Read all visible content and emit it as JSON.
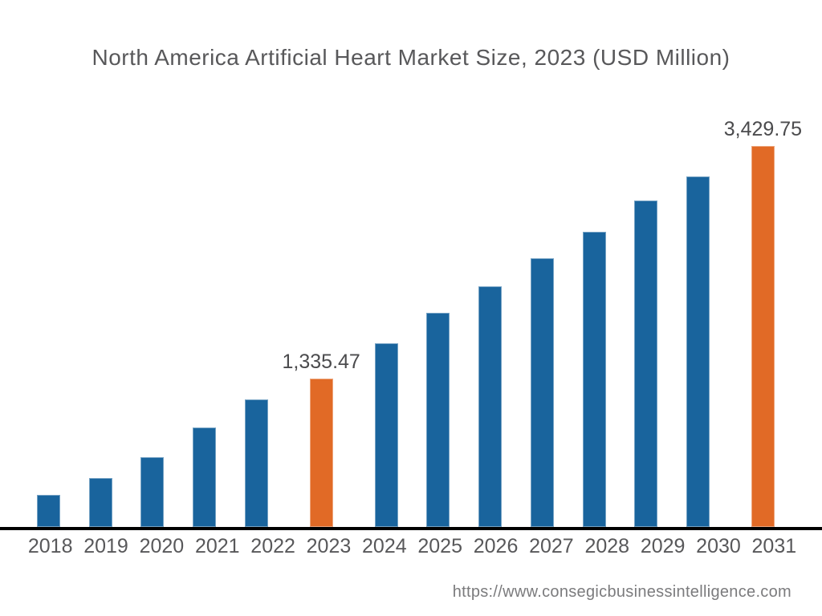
{
  "title": "North America Artificial Heart Market Size, 2023 (USD Million)",
  "source_url": "https://www.consegicbusinessintelligence.com",
  "chart_data": {
    "type": "bar",
    "title": "North America Artificial Heart Market Size, 2023 (USD Million)",
    "unit": "USD Million",
    "categories": [
      "2018",
      "2019",
      "2020",
      "2021",
      "2022",
      "2023",
      "2024",
      "2025",
      "2026",
      "2027",
      "2028",
      "2029",
      "2030",
      "2031"
    ],
    "values": [
      289,
      440,
      628,
      895,
      1148,
      1335.47,
      1653,
      1928,
      2166,
      2419,
      2657,
      2939,
      3156,
      3429.75
    ],
    "data_labels": {
      "2023": "1,335.47",
      "2031": "3,429.75"
    },
    "highlighted_categories": [
      "2023",
      "2031"
    ],
    "xlabel": "",
    "ylabel": "",
    "ylim": [
      0,
      3500
    ],
    "grid": false,
    "legend": "none",
    "colors": {
      "bar_default": "#19649d",
      "bar_highlight": "#e16a26",
      "axis_line": "#000000",
      "title_text": "#58585a",
      "tick_text": "#58585a",
      "data_label_text": "#4b4b4d",
      "source_text": "#7b7b7d"
    }
  }
}
